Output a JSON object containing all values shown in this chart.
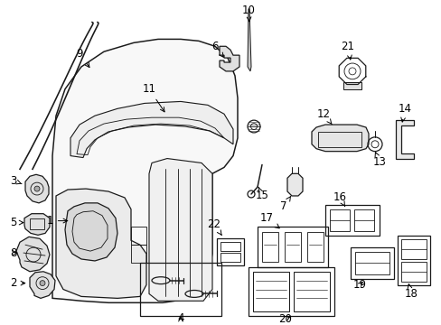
{
  "background_color": "#ffffff",
  "line_color": "#1a1a1a",
  "text_color": "#000000",
  "fig_width": 4.89,
  "fig_height": 3.6,
  "dpi": 100,
  "label_fs": 8.5,
  "lw": 0.9
}
